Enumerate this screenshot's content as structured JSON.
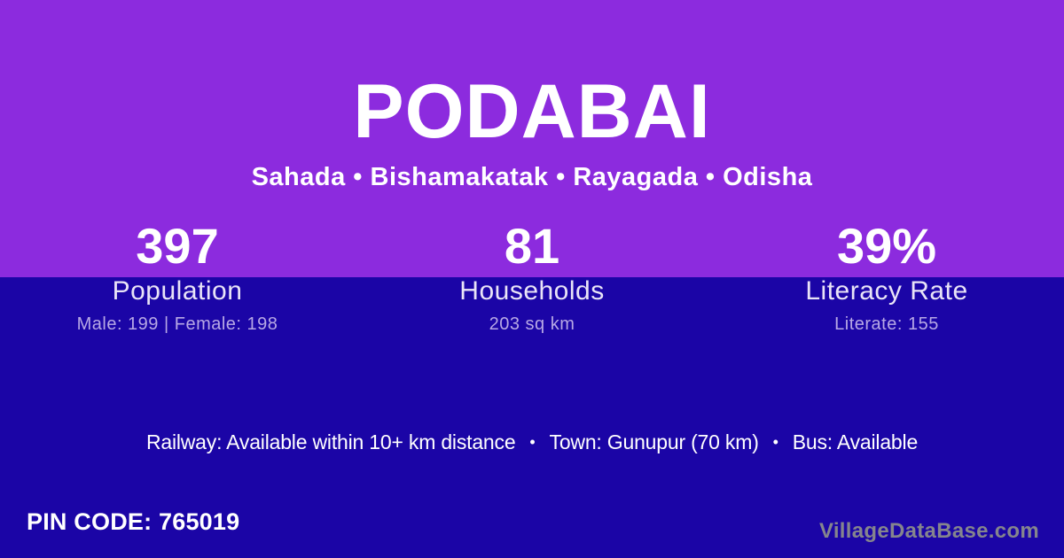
{
  "theme": {
    "top_background": "#8C2BDE",
    "bottom_background": "#1B05A6",
    "primary_text": "#FFFFFF",
    "label_text": "#E9E4F7",
    "detail_text": "#B7A8E5",
    "watermark_text": "#85858D"
  },
  "header": {
    "title": "PODABAI",
    "subtitle": "Sahada • Bishamakatak • Rayagada • Odisha"
  },
  "stats": [
    {
      "value": "397",
      "label": "Population",
      "detail": "Male: 199 | Female: 198"
    },
    {
      "value": "81",
      "label": "Households",
      "detail": "203 sq km"
    },
    {
      "value": "39%",
      "label": "Literacy Rate",
      "detail": "Literate: 155"
    }
  ],
  "transport": {
    "railway": "Railway: Available within 10+ km distance",
    "separator": "•",
    "town": "Town: Gunupur (70 km)",
    "bus": "Bus: Available"
  },
  "footer": {
    "pin_code": "PIN CODE: 765019",
    "watermark": "VillageDataBase.com"
  }
}
